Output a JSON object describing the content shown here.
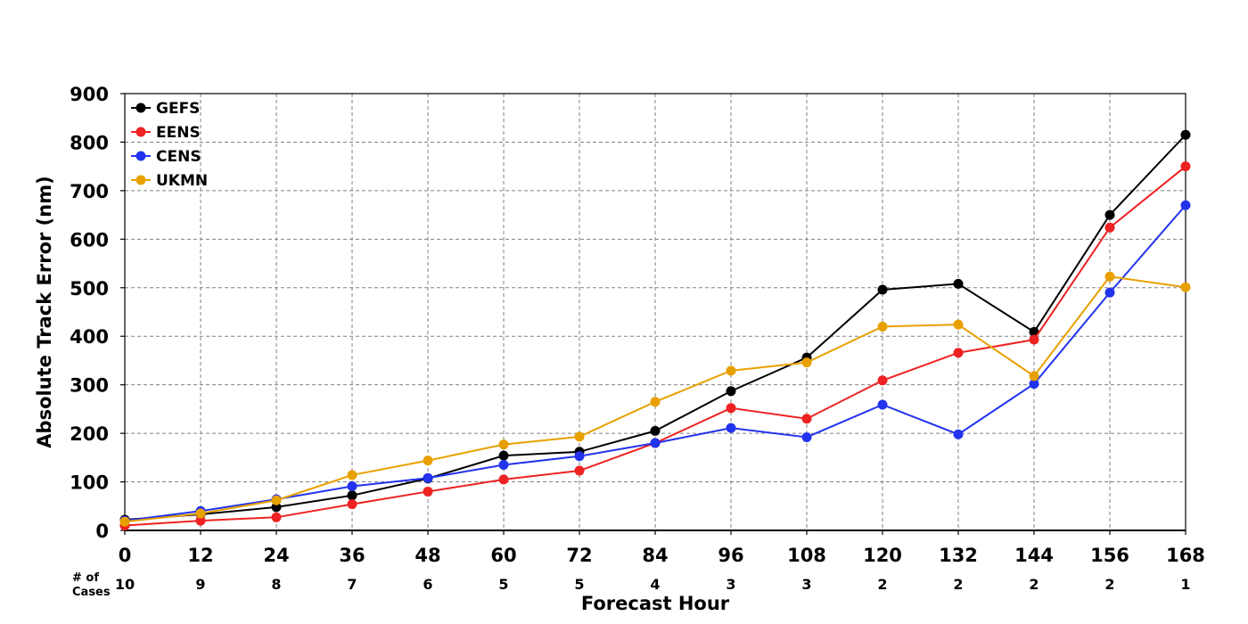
{
  "chart_data": {
    "type": "line",
    "x": [
      0,
      12,
      24,
      36,
      48,
      60,
      72,
      84,
      96,
      108,
      120,
      132,
      144,
      156,
      168
    ],
    "xlim": [
      0,
      168
    ],
    "ylim": [
      0,
      900
    ],
    "yticks": [
      0,
      100,
      200,
      300,
      400,
      500,
      600,
      700,
      800,
      900
    ],
    "xlabel": "Forecast Hour",
    "ylabel": "Absolute Track Error (nm)",
    "cases_label": [
      "# of",
      "Cases"
    ],
    "cases": [
      10,
      9,
      8,
      7,
      6,
      5,
      5,
      4,
      3,
      3,
      2,
      2,
      2,
      2,
      1
    ],
    "grid": true,
    "legend_position": "top-left",
    "series": [
      {
        "name": "GEFS",
        "color": "#000000",
        "values": [
          22,
          33,
          48,
          72,
          107,
          154,
          162,
          205,
          287,
          356,
          496,
          508,
          409,
          650,
          815
        ]
      },
      {
        "name": "EENS",
        "color": "#ee2222",
        "values": [
          10,
          20,
          27,
          54,
          80,
          105,
          123,
          180,
          252,
          230,
          309,
          366,
          393,
          624,
          750
        ]
      },
      {
        "name": "CENS",
        "color": "#2233ee",
        "values": [
          20,
          40,
          64,
          91,
          108,
          135,
          153,
          180,
          211,
          192,
          259,
          198,
          302,
          490,
          670
        ]
      },
      {
        "name": "UKMN",
        "color": "#e8a000",
        "values": [
          18,
          35,
          62,
          114,
          144,
          177,
          193,
          265,
          329,
          346,
          420,
          424,
          318,
          523,
          501
        ]
      }
    ]
  }
}
